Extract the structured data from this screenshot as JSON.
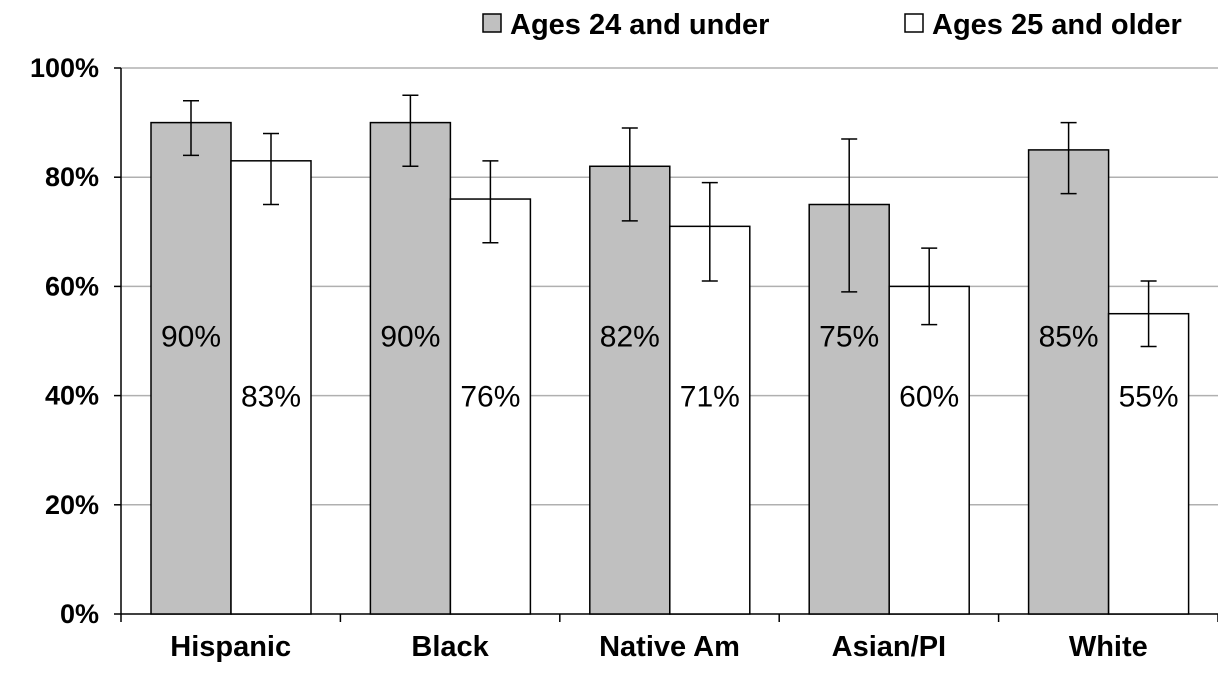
{
  "chart_data": {
    "type": "bar",
    "categories": [
      "Hispanic",
      "Black",
      "Native Am",
      "Asian/PI",
      "White"
    ],
    "series": [
      {
        "name": "Ages 24 and under",
        "color": "#c0c0c0",
        "values": [
          90,
          90,
          82,
          75,
          85
        ],
        "labels": [
          "90%",
          "90%",
          "82%",
          "75%",
          "85%"
        ],
        "error_low": [
          84,
          82,
          72,
          59,
          77
        ],
        "error_high": [
          94,
          95,
          89,
          87,
          90
        ]
      },
      {
        "name": "Ages 25 and older",
        "color": "#ffffff",
        "values": [
          83,
          76,
          71,
          60,
          55
        ],
        "labels": [
          "83%",
          "76%",
          "71%",
          "60%",
          "55%"
        ],
        "error_low": [
          75,
          68,
          61,
          53,
          49
        ],
        "error_high": [
          88,
          83,
          79,
          67,
          61
        ]
      }
    ],
    "ylim": [
      0,
      100
    ],
    "yticks": [
      0,
      20,
      40,
      60,
      80,
      100
    ],
    "ytick_labels": [
      "0%",
      "20%",
      "40%",
      "60%",
      "80%",
      "100%"
    ],
    "grid": true,
    "legend_position": "top-right",
    "bar_border_color": "#000000",
    "grid_color": "#b0b0b0"
  }
}
